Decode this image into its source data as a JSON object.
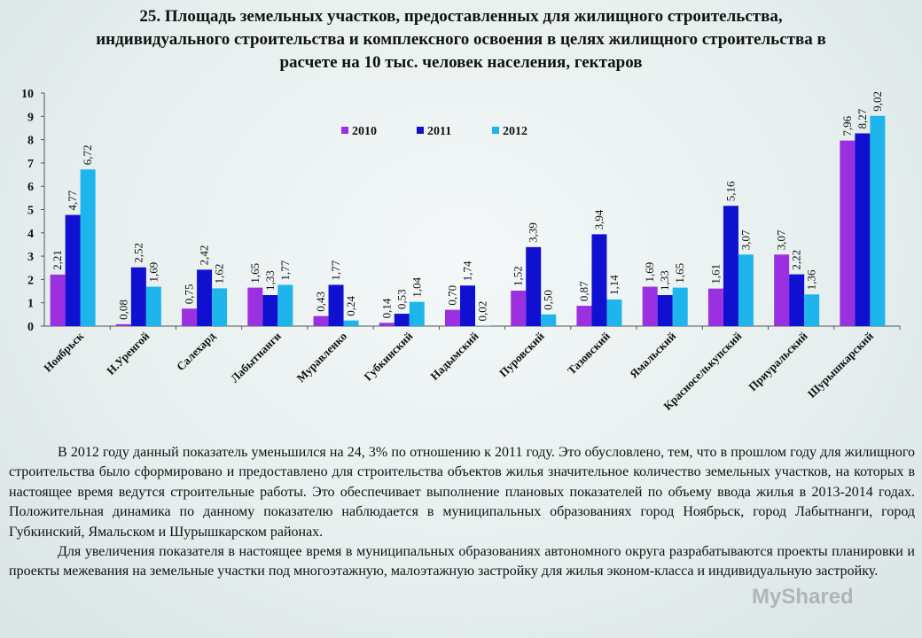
{
  "title_lines": [
    "25. Площадь земельных участков, предоставленных для жилищного строительства,",
    "индивидуального строительства и комплексного освоения в целях жилищного строительства в",
    "расчете на 10 тыс. человек населения, гектаров"
  ],
  "chart_data": {
    "type": "bar",
    "title": "",
    "xlabel": "",
    "ylabel": "",
    "ylim": [
      0,
      10
    ],
    "yticks": [
      "0",
      "1",
      "2",
      "3",
      "4",
      "5",
      "6",
      "7",
      "8",
      "9",
      "10"
    ],
    "grid": false,
    "legend_position": "top",
    "categories": [
      "Ноябрьск",
      "Н.Уренгой",
      "Салехард",
      "Лабытнанги",
      "Муравленко",
      "Губкинский",
      "Надымский",
      "Пуровский",
      "Тазовский",
      "Ямальский",
      "Красноселькупский",
      "Приуральский",
      "Шурышкарский"
    ],
    "series": [
      {
        "name": "2010",
        "color": "#9b30e0",
        "values": [
          2.21,
          0.08,
          0.75,
          1.65,
          0.43,
          0.14,
          0.7,
          1.52,
          0.87,
          1.69,
          1.61,
          3.07,
          7.96
        ],
        "labels": [
          "2,21",
          "0,08",
          "0,75",
          "1,65",
          "0,43",
          "0,14",
          "0,70",
          "1,52",
          "0,87",
          "1,69",
          "1,61",
          "3,07",
          "7,96"
        ]
      },
      {
        "name": "2011",
        "color": "#1010d0",
        "values": [
          4.77,
          2.52,
          2.42,
          1.33,
          1.77,
          0.53,
          1.74,
          3.39,
          3.94,
          1.33,
          5.16,
          2.22,
          8.27
        ],
        "labels": [
          "4,77",
          "2,52",
          "2,42",
          "1,33",
          "1,77",
          "0,53",
          "1,74",
          "3,39",
          "3,94",
          "1,33",
          "5,16",
          "2,22",
          "8,27"
        ]
      },
      {
        "name": "2012",
        "color": "#1eb4ec",
        "values": [
          6.72,
          1.69,
          1.62,
          1.77,
          0.24,
          1.04,
          0.02,
          0.5,
          1.14,
          1.65,
          3.07,
          1.36,
          9.02
        ],
        "labels": [
          "6,72",
          "1,69",
          "1,62",
          "1,77",
          "0,24",
          "1,04",
          "0,02",
          "0,50",
          "1,14",
          "1,65",
          "3,07",
          "1,36",
          "9,02"
        ]
      }
    ]
  },
  "paragraphs": [
    "В 2012 году данный показатель уменьшился на 24, 3% по отношению к 2011 году. Это обусловлено, тем, что в прошлом году для жилищного строительства было сформировано и предоставлено для строительства объектов жилья значительное количество земельных участков, на которых в настоящее время ведутся строительные работы. Это обеспечивает выполнение плановых показателей по объему ввода жилья в 2013-2014 годах. Положительная динамика по данному показателю наблюдается в муниципальных образованиях город Ноябрьск, город Лабытнанги, город Губкинский, Ямальском и Шурышкарском районах.",
    "Для увеличения показателя в настоящее время в муниципальных образованиях автономного округа разрабатываются проекты планировки и проекты межевания на земельные участки под многоэтажную, малоэтажную застройку для жилья эконом-класса и индивидуальную застройку."
  ],
  "watermark": "MyShared"
}
